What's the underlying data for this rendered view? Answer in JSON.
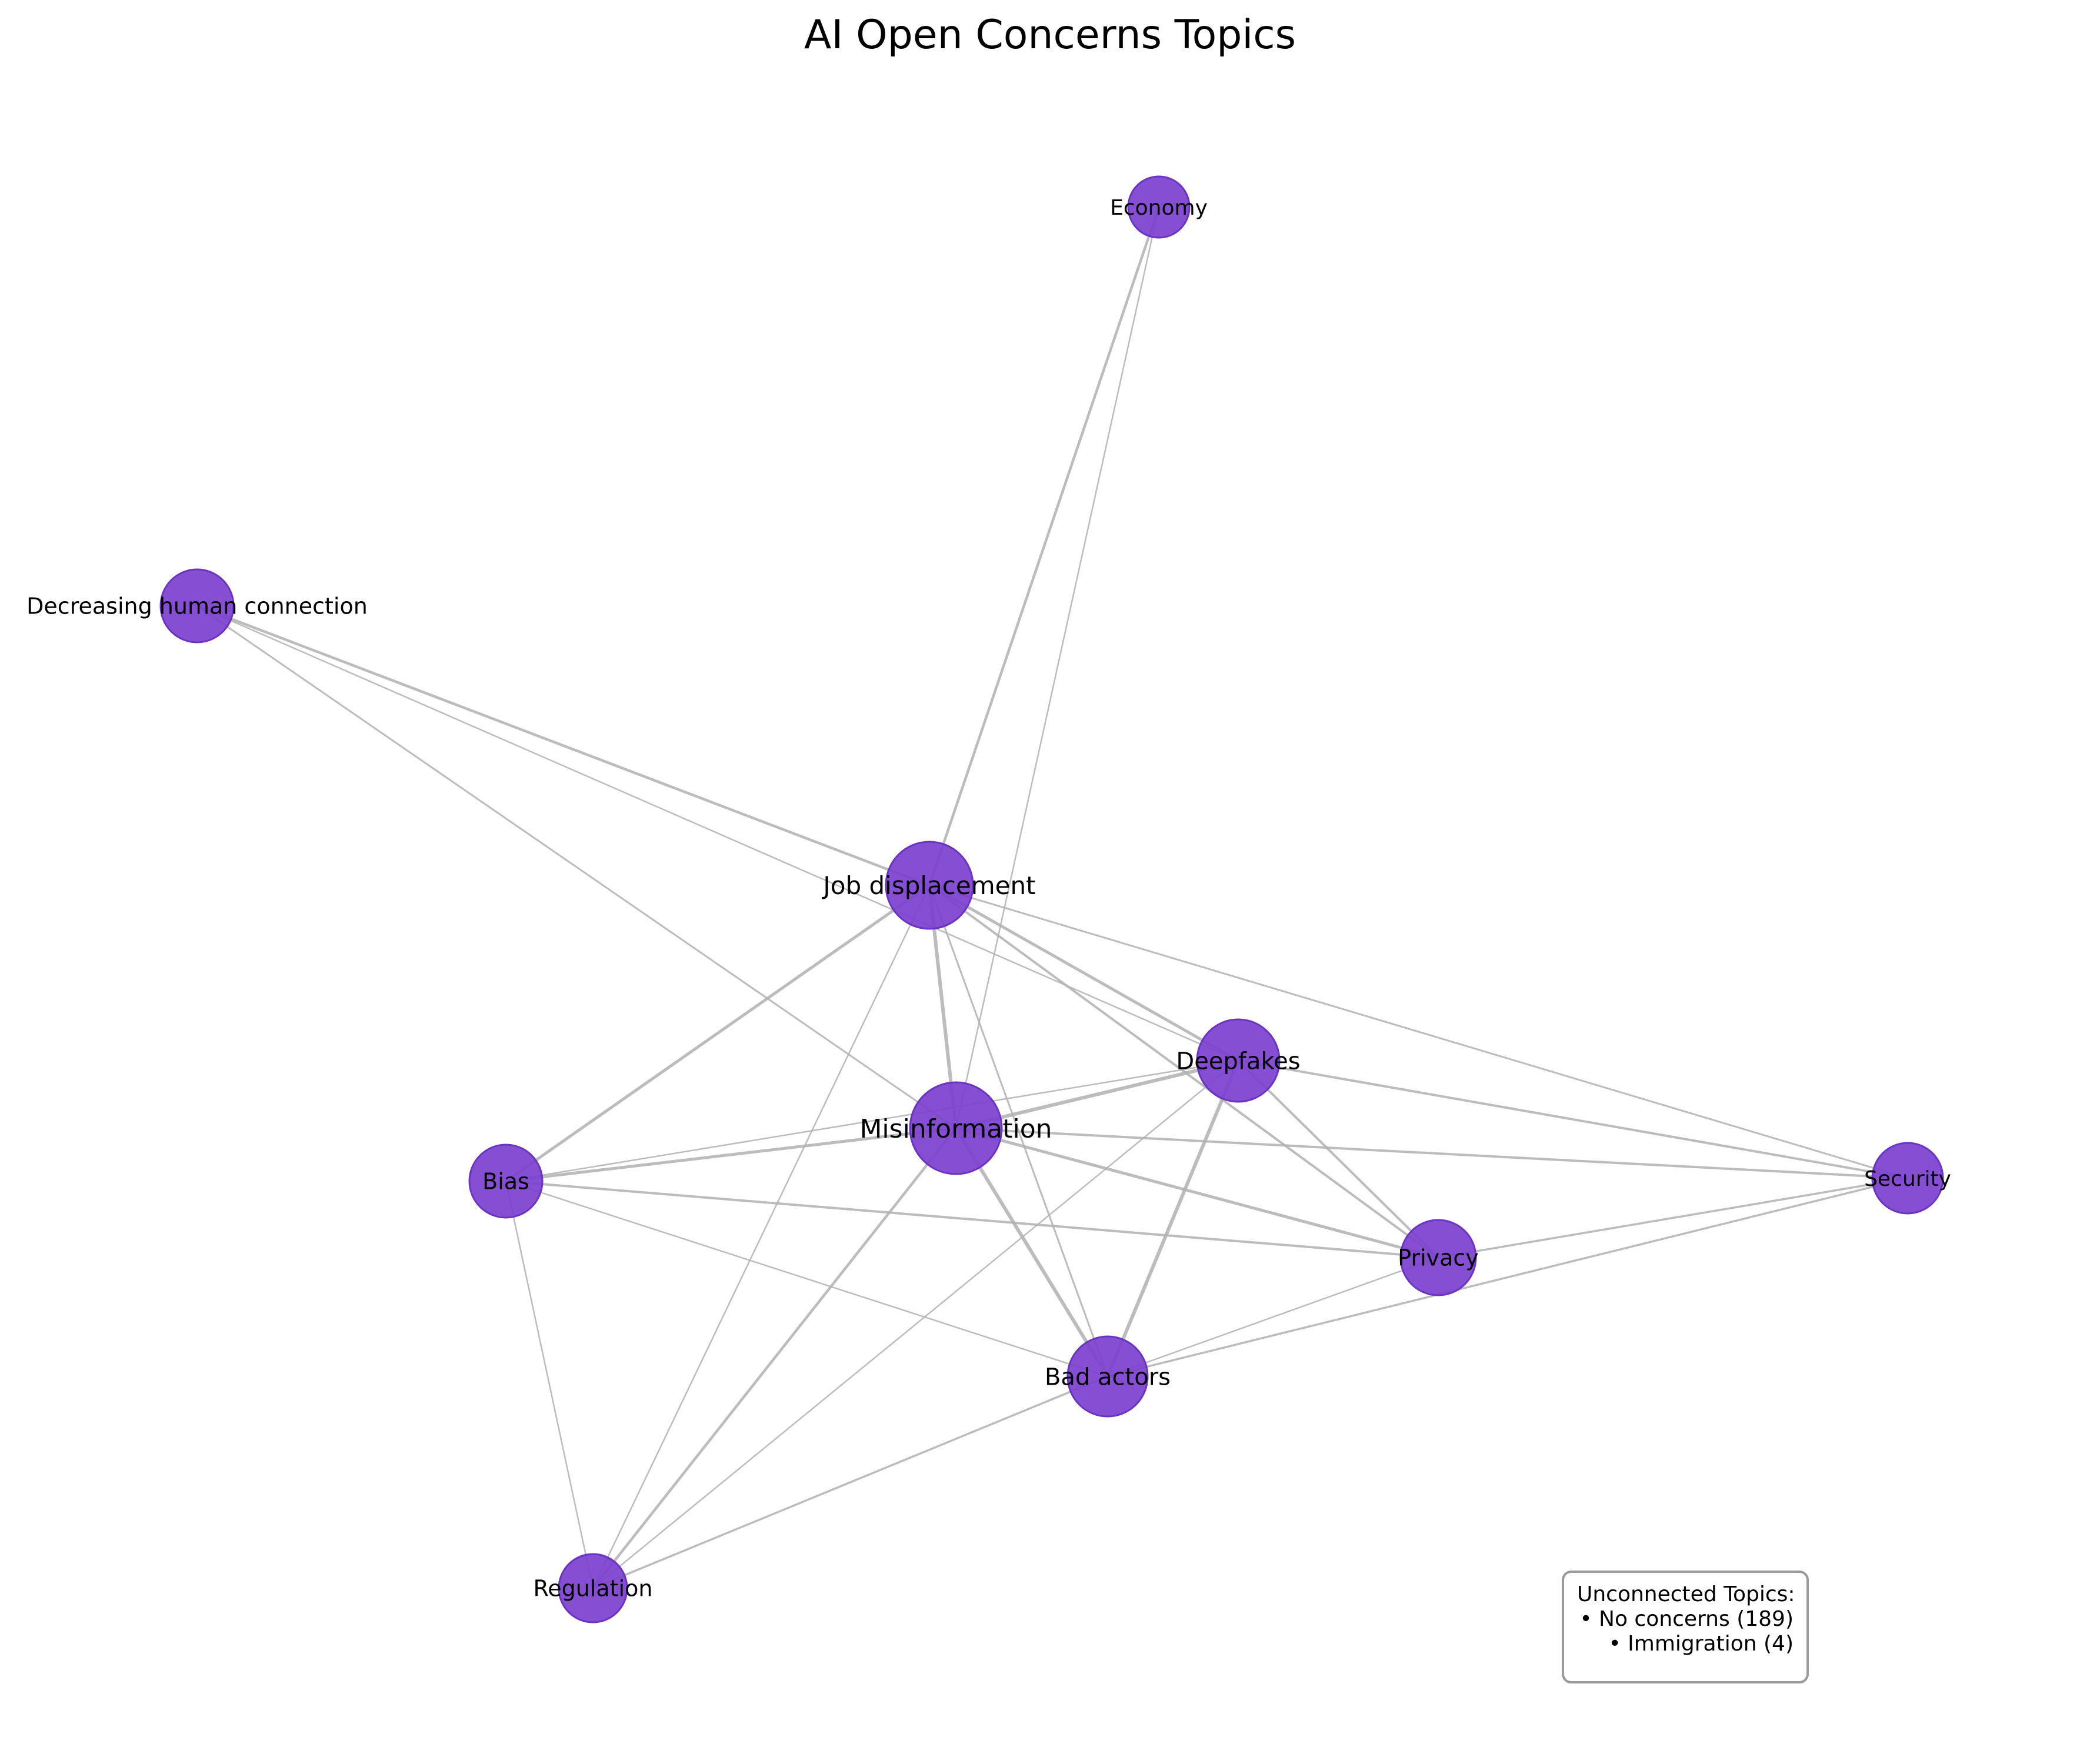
{
  "title": "AI Open Concerns Topics",
  "colors": {
    "node_fill": "#7b3fcf",
    "node_stroke": "#6a33c2",
    "edge": "#b0b0b0",
    "box_border": "#9a9a9a"
  },
  "nodes": [
    {
      "id": "economy",
      "label": "Economy"
    },
    {
      "id": "decreasing",
      "label": "Decreasing human connection"
    },
    {
      "id": "job",
      "label": "Job displacement"
    },
    {
      "id": "deepfakes",
      "label": "Deepfakes"
    },
    {
      "id": "misinfo",
      "label": "Misinformation"
    },
    {
      "id": "bias",
      "label": "Bias"
    },
    {
      "id": "security",
      "label": "Security"
    },
    {
      "id": "privacy",
      "label": "Privacy"
    },
    {
      "id": "bad",
      "label": "Bad actors"
    },
    {
      "id": "regulation",
      "label": "Regulation"
    }
  ],
  "edges": [
    [
      "economy",
      "job"
    ],
    [
      "economy",
      "misinfo"
    ],
    [
      "decreasing",
      "job"
    ],
    [
      "decreasing",
      "deepfakes"
    ],
    [
      "decreasing",
      "misinfo"
    ],
    [
      "job",
      "misinfo"
    ],
    [
      "job",
      "deepfakes"
    ],
    [
      "job",
      "privacy"
    ],
    [
      "job",
      "bias"
    ],
    [
      "job",
      "security"
    ],
    [
      "job",
      "bad"
    ],
    [
      "job",
      "regulation"
    ],
    [
      "deepfakes",
      "misinfo"
    ],
    [
      "deepfakes",
      "bias"
    ],
    [
      "deepfakes",
      "security"
    ],
    [
      "deepfakes",
      "privacy"
    ],
    [
      "deepfakes",
      "bad"
    ],
    [
      "deepfakes",
      "regulation"
    ],
    [
      "misinfo",
      "bias"
    ],
    [
      "misinfo",
      "security"
    ],
    [
      "misinfo",
      "privacy"
    ],
    [
      "misinfo",
      "bad"
    ],
    [
      "misinfo",
      "regulation"
    ],
    [
      "bias",
      "privacy"
    ],
    [
      "bias",
      "bad"
    ],
    [
      "bias",
      "regulation"
    ],
    [
      "security",
      "privacy"
    ],
    [
      "security",
      "bad"
    ],
    [
      "privacy",
      "bad"
    ],
    [
      "bad",
      "regulation"
    ]
  ],
  "unconnected": {
    "heading": "Unconnected Topics:",
    "items": [
      "• No concerns (189)",
      "• Immigration (4)"
    ]
  }
}
